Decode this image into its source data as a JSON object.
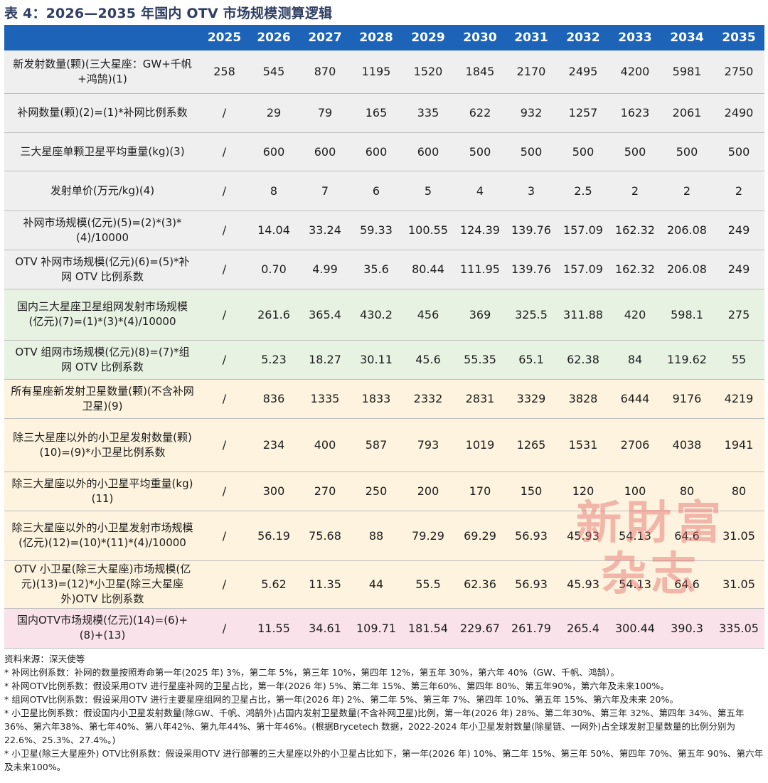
{
  "title": "表 4：2026—2035 年国内 OTV 市场规模测算逻辑",
  "columns": [
    "2025",
    "2026",
    "2027",
    "2028",
    "2029",
    "2030",
    "2031",
    "2032",
    "2033",
    "2034",
    "2035"
  ],
  "rows": [
    {
      "label": "新发射数量(颗)(三大星座：GW+千帆+鸿鹄)(1)",
      "values": [
        "258",
        "545",
        "870",
        "1195",
        "1520",
        "1845",
        "2170",
        "2495",
        "4200",
        "5981",
        "2750"
      ]
    },
    {
      "label": "补网数量(颗)(2)=(1)*补网比例系数",
      "values": [
        "/",
        "29",
        "79",
        "165",
        "335",
        "622",
        "932",
        "1257",
        "1623",
        "2061",
        "2490"
      ]
    },
    {
      "label": "三大星座单颗卫星平均重量(kg)(3)",
      "values": [
        "/",
        "600",
        "600",
        "600",
        "600",
        "500",
        "500",
        "500",
        "500",
        "500",
        "500"
      ]
    },
    {
      "label": "发射单价(万元/kg)(4)",
      "values": [
        "/",
        "8",
        "7",
        "6",
        "5",
        "4",
        "3",
        "2.5",
        "2",
        "2",
        "2"
      ]
    },
    {
      "label": "补网市场规模(亿元)(5)=(2)*(3)*(4)/10000",
      "values": [
        "/",
        "14.04",
        "33.24",
        "59.33",
        "100.55",
        "124.39",
        "139.76",
        "157.09",
        "162.32",
        "206.08",
        "249"
      ]
    },
    {
      "label": "OTV 补网市场规模(亿元)(6)=(5)*补网 OTV 比例系数",
      "values": [
        "/",
        "0.70",
        "4.99",
        "35.6",
        "80.44",
        "111.95",
        "139.76",
        "157.09",
        "162.32",
        "206.08",
        "249"
      ]
    },
    {
      "label": "国内三大星座卫星组网发射市场规模(亿元)(7)=(1)*(3)*(4)/10000",
      "values": [
        "/",
        "261.6",
        "365.4",
        "430.2",
        "456",
        "369",
        "325.5",
        "311.88",
        "420",
        "598.1",
        "275"
      ]
    },
    {
      "label": "OTV 组网市场规模(亿元)(8)=(7)*组网 OTV 比例系数",
      "values": [
        "/",
        "5.23",
        "18.27",
        "30.11",
        "45.6",
        "55.35",
        "65.1",
        "62.38",
        "84",
        "119.62",
        "55"
      ]
    },
    {
      "label": "所有星座新发射卫星数量(颗)(不含补网卫星)(9)",
      "values": [
        "/",
        "836",
        "1335",
        "1833",
        "2332",
        "2831",
        "3329",
        "3828",
        "6444",
        "9176",
        "4219"
      ]
    },
    {
      "label": "除三大星座以外的小卫星发射数量(颗)(10)=(9)*小卫星比例系数",
      "values": [
        "/",
        "234",
        "400",
        "587",
        "793",
        "1019",
        "1265",
        "1531",
        "2706",
        "4038",
        "1941"
      ]
    },
    {
      "label": "除三大星座以外的小卫星平均重量(kg)(11)",
      "values": [
        "/",
        "300",
        "270",
        "250",
        "200",
        "170",
        "150",
        "120",
        "100",
        "80",
        "80"
      ]
    },
    {
      "label": "除三大星座以外的小卫星发射市场规模(亿元)(12)=(10)*(11)*(4)/10000",
      "values": [
        "/",
        "56.19",
        "75.68",
        "88",
        "79.29",
        "69.29",
        "56.93",
        "45.93",
        "54.13",
        "64.6",
        "31.05"
      ]
    },
    {
      "label": "OTV 小卫星(除三大星座)市场规模(亿元)(13)=(12)*小卫星(除三大星座外)OTV 比例系数",
      "values": [
        "/",
        "5.62",
        "11.35",
        "44",
        "55.5",
        "62.36",
        "56.93",
        "45.93",
        "54.13",
        "64.6",
        "31.05"
      ]
    },
    {
      "label": "国内OTV市场规模(亿元)(14)=(6)+(8)+(13)",
      "values": [
        "/",
        "11.55",
        "34.61",
        "109.71",
        "181.54",
        "229.67",
        "261.79",
        "265.4",
        "300.44",
        "390.3",
        "335.05"
      ]
    }
  ],
  "watermark": {
    "line1": "新財富",
    "line2": "杂志"
  },
  "notes": [
    "资料来源：深天使等",
    "* 补网比例系数：补网的数量按照寿命第一年(2025 年) 3%，第二年 5%，第三年 10%，第四年 12%，第五年 30%，第六年 40%（GW、千帆、鸿鹄）。",
    "* 补网OTV比例系数：假设采用OTV 进行星座补网的卫星占比，第一年(2026 年) 5%、第二年 15%、第三年60%、第四年 80%、第五年90%，第六年及未来100%。",
    "* 组网OTV比例系数：假设采用OTV 进行主要星座组网的卫星占比，第一年(2026 年) 2%、第二年 5%、第三年 7%、第四年 10%、第五年 15%、第六年及未来 20%。",
    "* 小卫星比例系数：假设国内小卫星发射数量(除GW、千帆、鸿鹄外)占国内发射卫星数量(不含补网卫星)比例，第一年(2026 年) 28%、第二年30%、第三年 32%、第四年 34%、第五年 36%、第六年38%、第七年40%、第八年42%、第九年44%、第十年46%。(根据Brycetech 数据，2022-2024 年小卫星发射数量(除星链、一网外)占全球发射卫星数量的比例分别为 22.6%、25.3%、27.4%。)",
    "* 小卫星(除三大星座外) OTV比例系数：假设采用OTV 进行部署的三大星座以外的小卫星占比如下，第一年(2026 年) 10%、第二年 15%、第三年 50%、第四年 70%、第五年 90%、第六年及未来100%。"
  ]
}
